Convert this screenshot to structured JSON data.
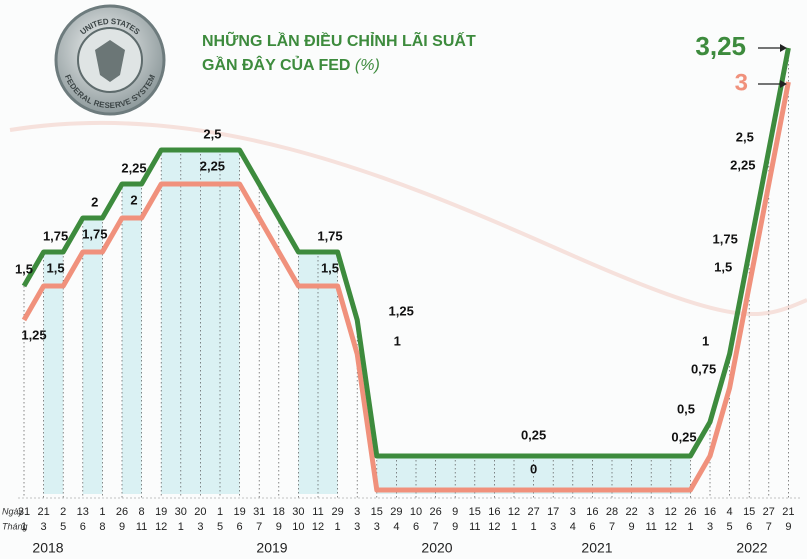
{
  "chart_data": {
    "type": "line",
    "title": "NHỮNG LẦN ĐIỀU CHỈNH LÃI SUẤT",
    "subtitle": "GẦN ĐÂY CỦA FED",
    "unit": "(%)",
    "seal_text": [
      "UNITED STATES",
      "FEDERAL RESERVE SYSTEM"
    ],
    "row_labels": [
      "Ngày",
      "Tháng"
    ],
    "categories": [
      "31",
      "21",
      "2",
      "13",
      "1",
      "26",
      "8",
      "19",
      "30",
      "20",
      "1",
      "19",
      "31",
      "18",
      "30",
      "11",
      "29",
      "3",
      "15",
      "29",
      "10",
      "26",
      "9",
      "15",
      "16",
      "12",
      "27",
      "17",
      "3",
      "16",
      "28",
      "22",
      "3",
      "12",
      "26",
      "16",
      "4",
      "15",
      "27",
      "21"
    ],
    "months": [
      "1",
      "3",
      "5",
      "6",
      "8",
      "9",
      "11",
      "12",
      "1",
      "3",
      "5",
      "6",
      "7",
      "9",
      "10",
      "12",
      "1",
      "3",
      "3",
      "4",
      "6",
      "7",
      "9",
      "11",
      "12",
      "1",
      "1",
      "3",
      "4",
      "6",
      "7",
      "9",
      "11",
      "12",
      "1",
      "3",
      "5",
      "6",
      "7",
      "9"
    ],
    "years": [
      "2018",
      "2019",
      "2020",
      "2021",
      "2022"
    ],
    "ylim": [
      0,
      3.25
    ],
    "series": [
      {
        "color": "#3d8b3d",
        "values": [
          1.5,
          1.75,
          1.75,
          2,
          2,
          2.25,
          2.25,
          2.5,
          2.5,
          2.5,
          2.5,
          2.5,
          2.25,
          2,
          1.75,
          1.75,
          1.75,
          1.25,
          0.25,
          0.25,
          0.25,
          0.25,
          0.25,
          0.25,
          0.25,
          0.25,
          0.25,
          0.25,
          0.25,
          0.25,
          0.25,
          0.25,
          0.25,
          0.25,
          0.25,
          0.5,
          1,
          1.75,
          2.5,
          3.25
        ],
        "value_labels": [
          "1,5",
          "1,75",
          null,
          "2",
          null,
          "2,25",
          null,
          null,
          null,
          "2,5",
          null,
          null,
          null,
          null,
          null,
          "1,75",
          null,
          "1,25",
          null,
          null,
          null,
          null,
          null,
          null,
          null,
          null,
          "0,25",
          null,
          null,
          null,
          null,
          null,
          null,
          null,
          null,
          "0,5",
          "1",
          "1,75",
          "2,5",
          "3,25"
        ]
      },
      {
        "color": "#f0917c",
        "values": [
          1.25,
          1.5,
          1.5,
          1.75,
          1.75,
          2,
          2,
          2.25,
          2.25,
          2.25,
          2.25,
          2.25,
          2,
          1.75,
          1.5,
          1.5,
          1.5,
          1,
          0,
          0,
          0,
          0,
          0,
          0,
          0,
          0,
          0,
          0,
          0,
          0,
          0,
          0,
          0,
          0,
          0,
          0.25,
          0.75,
          1.5,
          2.25,
          3
        ],
        "value_labels": [
          "1,25",
          "1,5",
          null,
          "1,75",
          null,
          "2",
          null,
          null,
          null,
          "2,25",
          null,
          null,
          null,
          null,
          null,
          "1,5",
          null,
          "1",
          null,
          null,
          null,
          null,
          null,
          null,
          null,
          null,
          "0",
          null,
          null,
          null,
          null,
          null,
          null,
          null,
          null,
          "0,25",
          "0,75",
          "1,5",
          "2,25",
          "3"
        ]
      }
    ]
  }
}
